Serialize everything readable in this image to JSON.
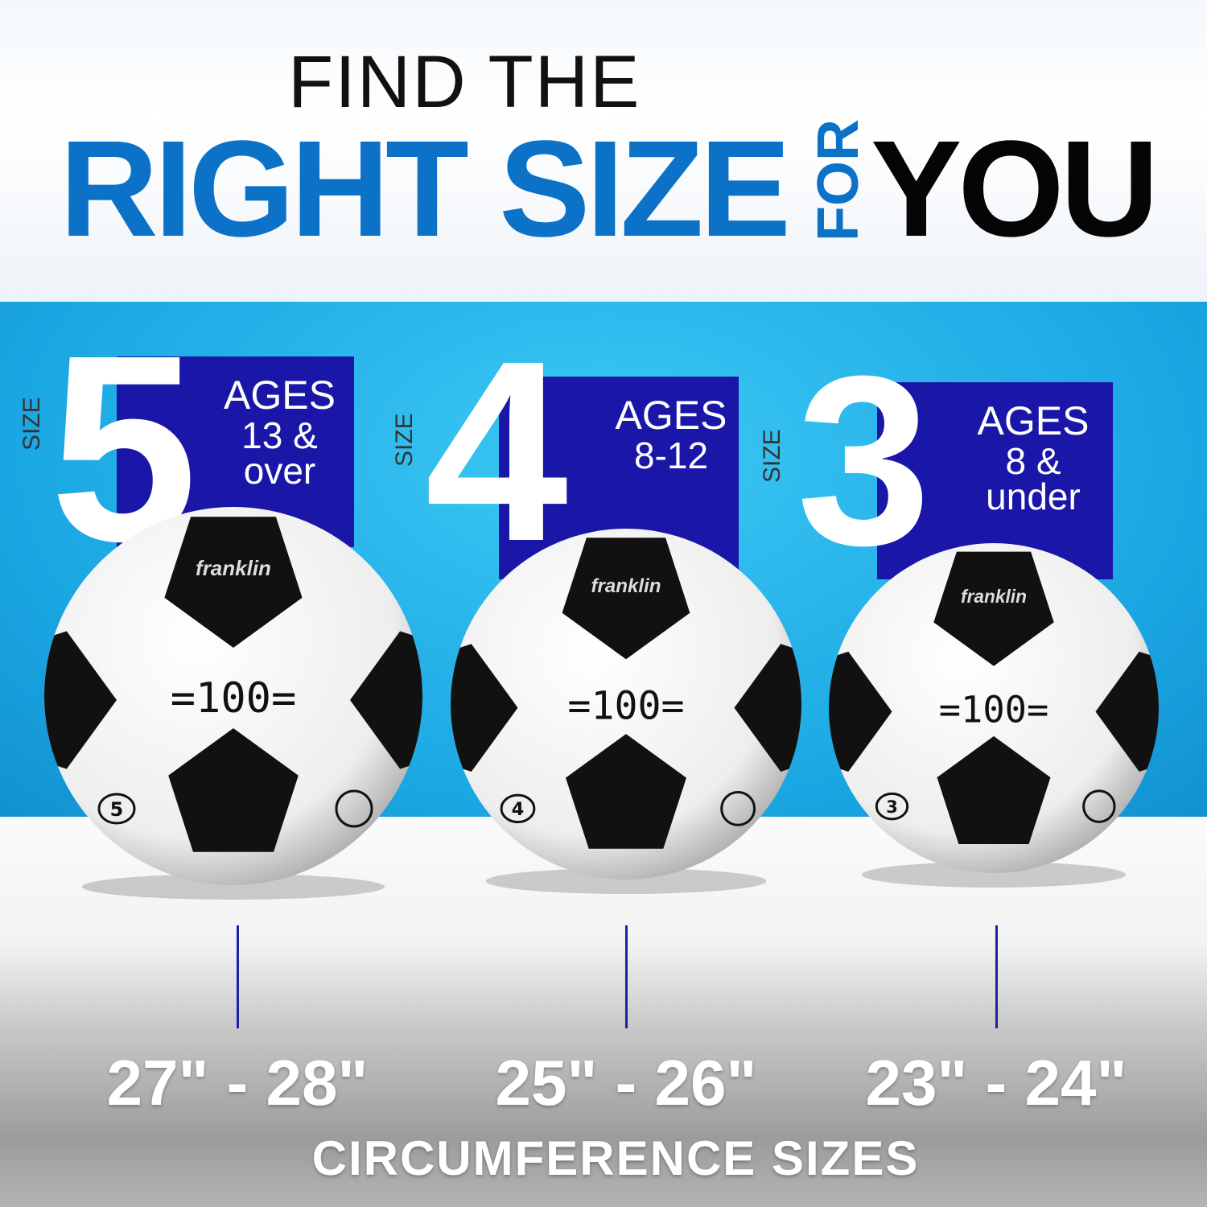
{
  "header": {
    "line1": "FIND THE",
    "line2": "RIGHT SIZE",
    "for": "FOR",
    "you": "YOU"
  },
  "colors": {
    "accent_blue": "#0b72c7",
    "panel_blue": "#1a16a8",
    "band_blue": "#29b6e8"
  },
  "sizes": [
    {
      "number": "5",
      "label": "SIZE",
      "ages_title": "AGES",
      "ages_line1": "13 &",
      "ages_line2": "over",
      "ball_brand": "franklin",
      "ball_model": "100",
      "circumference": "27\" - 28\""
    },
    {
      "number": "4",
      "label": "SIZE",
      "ages_title": "AGES",
      "ages_line1": "8-12",
      "ages_line2": "",
      "ball_brand": "franklin",
      "ball_model": "100",
      "circumference": "25\" - 26\""
    },
    {
      "number": "3",
      "label": "SIZE",
      "ages_title": "AGES",
      "ages_line1": "8 &",
      "ages_line2": "under",
      "ball_brand": "franklin",
      "ball_model": "100",
      "circumference": "23\" - 24\""
    }
  ],
  "caption": "CIRCUMFERENCE SIZES"
}
